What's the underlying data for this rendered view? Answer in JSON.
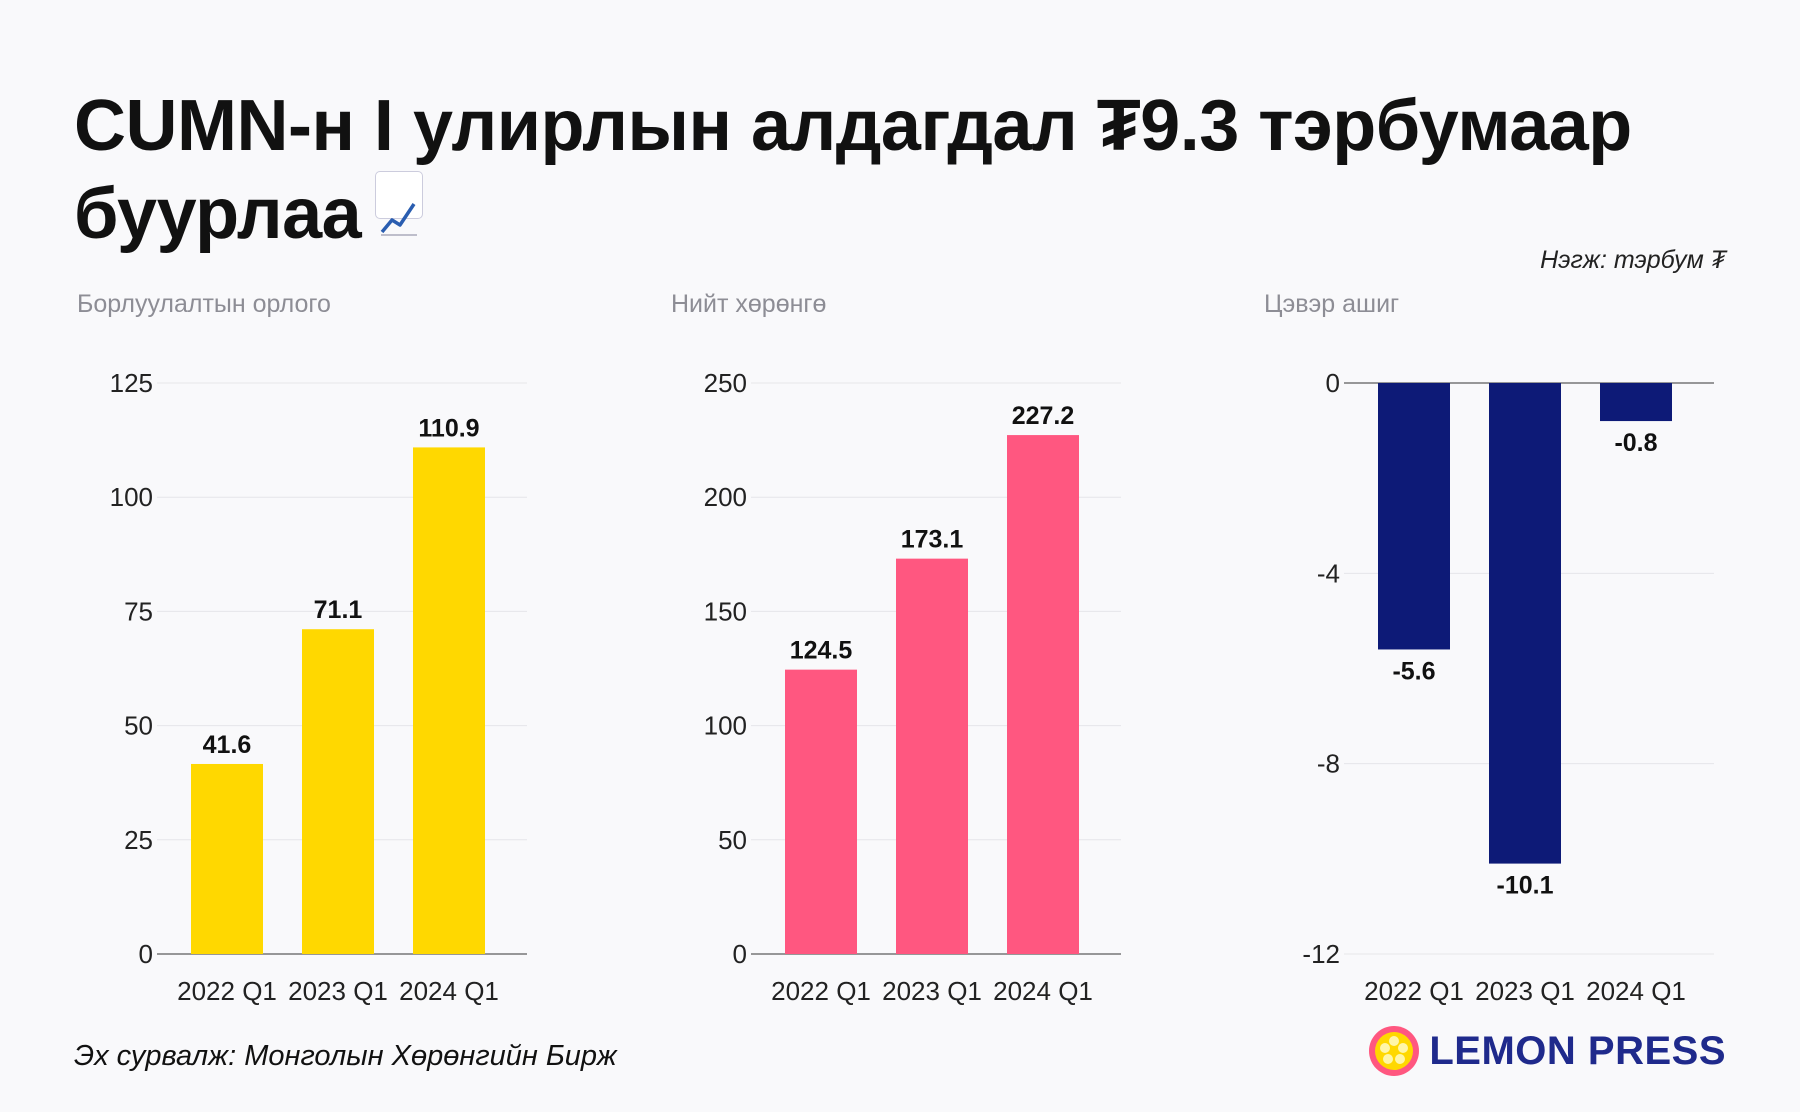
{
  "header": {
    "title": "CUMN-н I улирлын алдагдал ₮9.3 тэрбумаар буурлаа",
    "title_icon": "chart-increasing-icon",
    "unit": "Нэгж: тэрбум ₮"
  },
  "footer": {
    "source": "Эх сурвалж: Монголын Хөрөнгийн Бирж",
    "logo_text": "LEMON PRESS",
    "logo_icon": "lemon-icon"
  },
  "colors": {
    "revenue": "#ffd800",
    "assets": "#ff5780",
    "profit": "#0d1a77",
    "logo": "#1f2a8c"
  },
  "chart_data": [
    {
      "type": "bar",
      "title": "Борлуулалтын орлого",
      "categories": [
        "2022 Q1",
        "2023 Q1",
        "2024 Q1"
      ],
      "values": [
        41.6,
        71.1,
        110.9
      ],
      "value_labels": [
        "41.6",
        "71.1",
        "110.9"
      ],
      "yticks": [
        0,
        25,
        50,
        75,
        100,
        125
      ],
      "ylim": [
        0,
        125
      ],
      "grid": true,
      "color": "#ffd800"
    },
    {
      "type": "bar",
      "title": "Нийт хөрөнгө",
      "categories": [
        "2022 Q1",
        "2023 Q1",
        "2024 Q1"
      ],
      "values": [
        124.5,
        173.1,
        227.2
      ],
      "value_labels": [
        "124.5",
        "173.1",
        "227.2"
      ],
      "yticks": [
        0,
        50,
        100,
        150,
        200,
        250
      ],
      "ylim": [
        0,
        250
      ],
      "grid": true,
      "color": "#ff5780"
    },
    {
      "type": "bar",
      "title": "Цэвэр ашиг",
      "categories": [
        "2022 Q1",
        "2023 Q1",
        "2024 Q1"
      ],
      "values": [
        -5.6,
        -10.1,
        -0.8
      ],
      "value_labels": [
        "-5.6",
        "-10.1",
        "-0.8"
      ],
      "yticks": [
        0,
        -4,
        -8,
        -12
      ],
      "ylim": [
        -12,
        0
      ],
      "grid": true,
      "color": "#0d1a77"
    }
  ]
}
